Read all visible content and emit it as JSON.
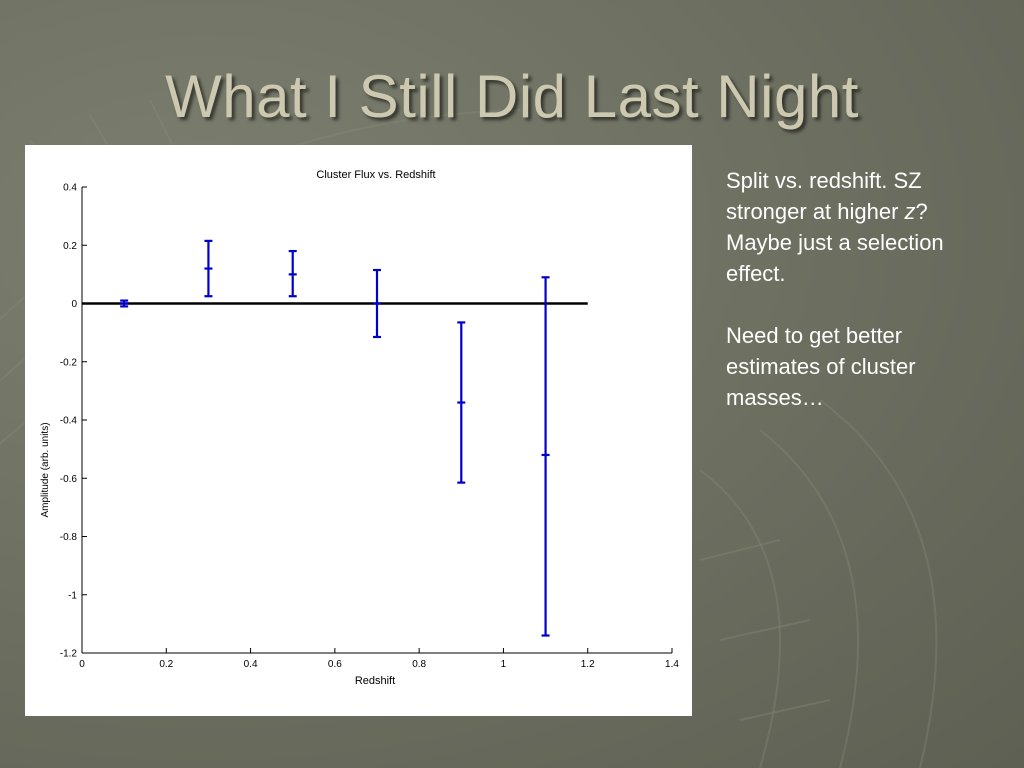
{
  "slide": {
    "title": "What I Still Did Last Night"
  },
  "notes": {
    "paragraph1": {
      "before": "Split vs. redshift. SZ stronger at higher ",
      "italic": "z",
      "after": "?  Maybe just a selection effect."
    },
    "paragraph2": "Need to get better estimates of cluster masses…"
  },
  "colors": {
    "series": "#0000cc",
    "zero_line": "#000000",
    "title_text": "#cdc9b0"
  },
  "chart_data": {
    "type": "scatter",
    "title": "Cluster Flux vs. Redshift",
    "xlabel": "Redshift",
    "ylabel": "Amplitude (arb. units)",
    "xlim": [
      0,
      1.4
    ],
    "ylim": [
      -1.2,
      0.4
    ],
    "xticks": [
      "0",
      "0.2",
      "0.4",
      "0.6",
      "0.8",
      "1",
      "1.2",
      "1.4"
    ],
    "yticks": [
      "-1.2",
      "-1",
      "-0.8",
      "-0.6",
      "-0.4",
      "-0.2",
      "0",
      "0.2",
      "0.4"
    ],
    "grid": false,
    "reference_line": {
      "y": 0,
      "x_from": 0,
      "x_to": 1.2
    },
    "series": [
      {
        "points": [
          {
            "x": 0.1,
            "y": 0.0,
            "lo": -0.01,
            "hi": 0.01
          },
          {
            "x": 0.3,
            "y": 0.12,
            "lo": 0.025,
            "hi": 0.215
          },
          {
            "x": 0.5,
            "y": 0.1,
            "lo": 0.025,
            "hi": 0.18
          },
          {
            "x": 0.7,
            "y": 0.0,
            "lo": -0.115,
            "hi": 0.115
          },
          {
            "x": 0.9,
            "y": -0.34,
            "lo": -0.615,
            "hi": -0.065
          },
          {
            "x": 1.1,
            "y": -0.52,
            "lo": -1.14,
            "hi": 0.09
          }
        ]
      }
    ]
  }
}
